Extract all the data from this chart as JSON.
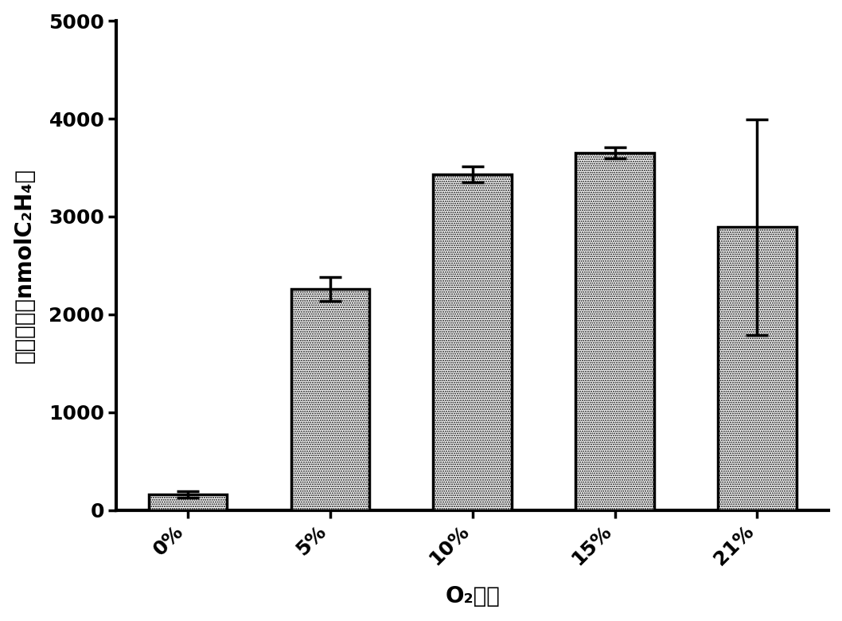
{
  "categories": [
    "0%",
    "5%",
    "10%",
    "15%",
    "21%"
  ],
  "values": [
    160,
    2260,
    3430,
    3650,
    2890
  ],
  "errors": [
    30,
    120,
    80,
    60,
    1100
  ],
  "bar_edgecolor": "#000000",
  "ylabel_cn": "固氮活性（nmolC",
  "ylabel_suffix": "H₄）",
  "xlabel": "O₂浓度",
  "ylim": [
    0,
    5000
  ],
  "yticks": [
    0,
    1000,
    2000,
    3000,
    4000,
    5000
  ],
  "background_color": "#ffffff",
  "bar_width": 0.55,
  "axis_fontsize": 20,
  "tick_fontsize": 18
}
